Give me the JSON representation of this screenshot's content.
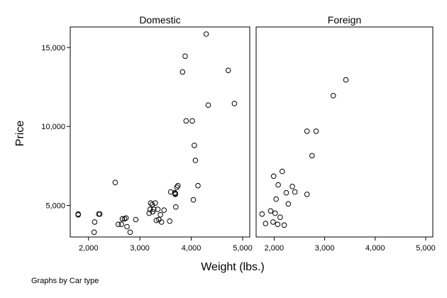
{
  "chart_data": {
    "type": "scatter",
    "panels": [
      {
        "title": "Domestic",
        "points": [
          [
            1800,
            4400
          ],
          [
            1800,
            4450
          ],
          [
            2110,
            3300
          ],
          [
            2120,
            3950
          ],
          [
            2200,
            4450
          ],
          [
            2220,
            4450
          ],
          [
            2520,
            6450
          ],
          [
            2580,
            3800
          ],
          [
            2640,
            3800
          ],
          [
            2660,
            4150
          ],
          [
            2700,
            4150
          ],
          [
            2730,
            4200
          ],
          [
            2750,
            3650
          ],
          [
            2810,
            3300
          ],
          [
            2920,
            4100
          ],
          [
            3180,
            4500
          ],
          [
            3200,
            4750
          ],
          [
            3210,
            5150
          ],
          [
            3240,
            5050
          ],
          [
            3250,
            4600
          ],
          [
            3270,
            4750
          ],
          [
            3300,
            5150
          ],
          [
            3320,
            4050
          ],
          [
            3350,
            4750
          ],
          [
            3370,
            4100
          ],
          [
            3400,
            4400
          ],
          [
            3420,
            3950
          ],
          [
            3470,
            4700
          ],
          [
            3580,
            4000
          ],
          [
            3600,
            5850
          ],
          [
            3680,
            5800
          ],
          [
            3690,
            5700
          ],
          [
            3690,
            5750
          ],
          [
            3700,
            4900
          ],
          [
            3720,
            6150
          ],
          [
            3740,
            6250
          ],
          [
            3830,
            13450
          ],
          [
            3880,
            14450
          ],
          [
            3900,
            10350
          ],
          [
            4020,
            10350
          ],
          [
            4040,
            5350
          ],
          [
            4060,
            8800
          ],
          [
            4080,
            7850
          ],
          [
            4130,
            6250
          ],
          [
            4290,
            15850
          ],
          [
            4330,
            11350
          ],
          [
            4720,
            13550
          ],
          [
            4840,
            11450
          ]
        ]
      },
      {
        "title": "Foreign",
        "points": [
          [
            1760,
            4450
          ],
          [
            1830,
            3850
          ],
          [
            1930,
            4650
          ],
          [
            1980,
            3950
          ],
          [
            1990,
            6850
          ],
          [
            2020,
            4500
          ],
          [
            2040,
            5400
          ],
          [
            2070,
            3800
          ],
          [
            2080,
            6300
          ],
          [
            2120,
            4250
          ],
          [
            2160,
            7150
          ],
          [
            2200,
            3750
          ],
          [
            2240,
            5800
          ],
          [
            2280,
            5100
          ],
          [
            2360,
            6200
          ],
          [
            2410,
            5850
          ],
          [
            2650,
            5700
          ],
          [
            2650,
            9700
          ],
          [
            2750,
            8150
          ],
          [
            2830,
            9700
          ],
          [
            3170,
            11950
          ],
          [
            3420,
            12950
          ]
        ]
      }
    ],
    "xlabel": "Weight (lbs.)",
    "ylabel": "Price",
    "xticks": [
      "2,000",
      "3,000",
      "4,000",
      "5,000"
    ],
    "xtick_values": [
      2000,
      3000,
      4000,
      5000
    ],
    "yticks": [
      "5,000",
      "10,000",
      "15,000"
    ],
    "ytick_values": [
      5000,
      10000,
      15000
    ],
    "xlim": [
      1700,
      5000
    ],
    "ylim": [
      3000,
      16300
    ],
    "grid": false,
    "note": "Graphs by Car type"
  }
}
